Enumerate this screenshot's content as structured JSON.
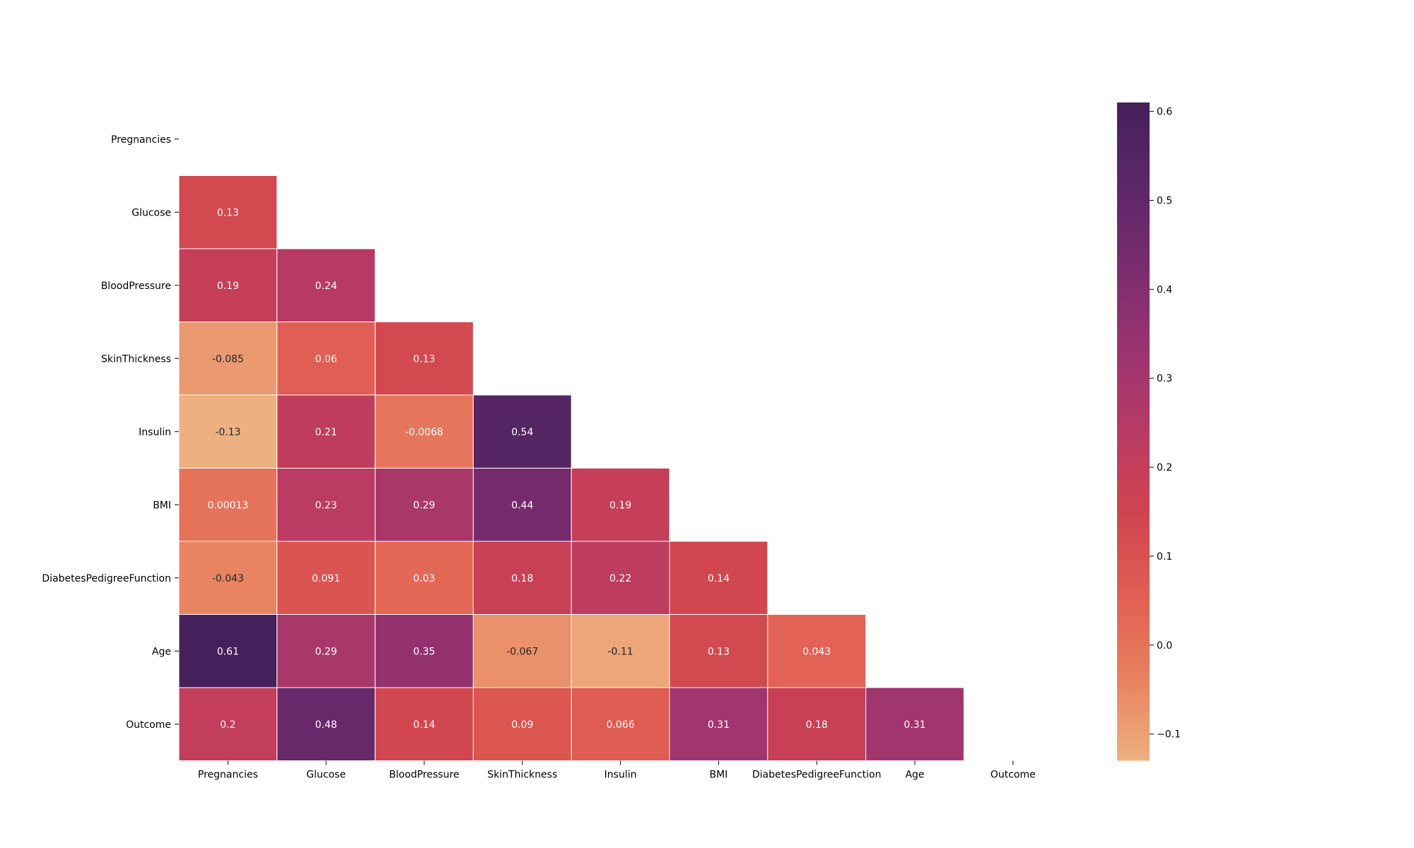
{
  "chart_data": {
    "type": "heatmap",
    "title": "",
    "xlabel": "",
    "ylabel": "",
    "variables": [
      "Pregnancies",
      "Glucose",
      "BloodPressure",
      "SkinThickness",
      "Insulin",
      "BMI",
      "DiabetesPedigreeFunction",
      "Age",
      "Outcome"
    ],
    "mask": "upper-triangle-including-diagonal",
    "cells": [
      {
        "row": "Glucose",
        "col": "Pregnancies",
        "value": 0.13,
        "label": "0.13"
      },
      {
        "row": "BloodPressure",
        "col": "Pregnancies",
        "value": 0.19,
        "label": "0.19"
      },
      {
        "row": "BloodPressure",
        "col": "Glucose",
        "value": 0.24,
        "label": "0.24"
      },
      {
        "row": "SkinThickness",
        "col": "Pregnancies",
        "value": -0.085,
        "label": "-0.085"
      },
      {
        "row": "SkinThickness",
        "col": "Glucose",
        "value": 0.06,
        "label": "0.06"
      },
      {
        "row": "SkinThickness",
        "col": "BloodPressure",
        "value": 0.13,
        "label": "0.13"
      },
      {
        "row": "Insulin",
        "col": "Pregnancies",
        "value": -0.13,
        "label": "-0.13"
      },
      {
        "row": "Insulin",
        "col": "Glucose",
        "value": 0.21,
        "label": "0.21"
      },
      {
        "row": "Insulin",
        "col": "BloodPressure",
        "value": -0.0068,
        "label": "-0.0068"
      },
      {
        "row": "Insulin",
        "col": "SkinThickness",
        "value": 0.54,
        "label": "0.54"
      },
      {
        "row": "BMI",
        "col": "Pregnancies",
        "value": 0.00013,
        "label": "0.00013"
      },
      {
        "row": "BMI",
        "col": "Glucose",
        "value": 0.23,
        "label": "0.23"
      },
      {
        "row": "BMI",
        "col": "BloodPressure",
        "value": 0.29,
        "label": "0.29"
      },
      {
        "row": "BMI",
        "col": "SkinThickness",
        "value": 0.44,
        "label": "0.44"
      },
      {
        "row": "BMI",
        "col": "Insulin",
        "value": 0.19,
        "label": "0.19"
      },
      {
        "row": "DiabetesPedigreeFunction",
        "col": "Pregnancies",
        "value": -0.043,
        "label": "-0.043"
      },
      {
        "row": "DiabetesPedigreeFunction",
        "col": "Glucose",
        "value": 0.091,
        "label": "0.091"
      },
      {
        "row": "DiabetesPedigreeFunction",
        "col": "BloodPressure",
        "value": 0.03,
        "label": "0.03"
      },
      {
        "row": "DiabetesPedigreeFunction",
        "col": "SkinThickness",
        "value": 0.18,
        "label": "0.18"
      },
      {
        "row": "DiabetesPedigreeFunction",
        "col": "Insulin",
        "value": 0.22,
        "label": "0.22"
      },
      {
        "row": "DiabetesPedigreeFunction",
        "col": "BMI",
        "value": 0.14,
        "label": "0.14"
      },
      {
        "row": "Age",
        "col": "Pregnancies",
        "value": 0.61,
        "label": "0.61"
      },
      {
        "row": "Age",
        "col": "Glucose",
        "value": 0.29,
        "label": "0.29"
      },
      {
        "row": "Age",
        "col": "BloodPressure",
        "value": 0.35,
        "label": "0.35"
      },
      {
        "row": "Age",
        "col": "SkinThickness",
        "value": -0.067,
        "label": "-0.067"
      },
      {
        "row": "Age",
        "col": "Insulin",
        "value": -0.11,
        "label": "-0.11"
      },
      {
        "row": "Age",
        "col": "BMI",
        "value": 0.13,
        "label": "0.13"
      },
      {
        "row": "Age",
        "col": "DiabetesPedigreeFunction",
        "value": 0.043,
        "label": "0.043"
      },
      {
        "row": "Outcome",
        "col": "Pregnancies",
        "value": 0.2,
        "label": "0.2"
      },
      {
        "row": "Outcome",
        "col": "Glucose",
        "value": 0.48,
        "label": "0.48"
      },
      {
        "row": "Outcome",
        "col": "BloodPressure",
        "value": 0.14,
        "label": "0.14"
      },
      {
        "row": "Outcome",
        "col": "SkinThickness",
        "value": 0.09,
        "label": "0.09"
      },
      {
        "row": "Outcome",
        "col": "Insulin",
        "value": 0.066,
        "label": "0.066"
      },
      {
        "row": "Outcome",
        "col": "BMI",
        "value": 0.31,
        "label": "0.31"
      },
      {
        "row": "Outcome",
        "col": "DiabetesPedigreeFunction",
        "value": 0.18,
        "label": "0.18"
      },
      {
        "row": "Outcome",
        "col": "Age",
        "value": 0.31,
        "label": "0.31"
      }
    ],
    "colorbar": {
      "colormap": "flare",
      "vmin": -0.13,
      "vmax": 0.61,
      "ticks": [
        -0.1,
        0.0,
        0.1,
        0.2,
        0.3,
        0.4,
        0.5,
        0.6
      ],
      "tick_labels": [
        "−0.1",
        "0.0",
        "0.1",
        "0.2",
        "0.3",
        "0.4",
        "0.5",
        "0.6"
      ],
      "colors": [
        "#edb081",
        "#e8815f",
        "#e15f53",
        "#d0444f",
        "#b83a64",
        "#9a3470",
        "#7a2c6f",
        "#5c2766",
        "#45205a"
      ]
    }
  }
}
